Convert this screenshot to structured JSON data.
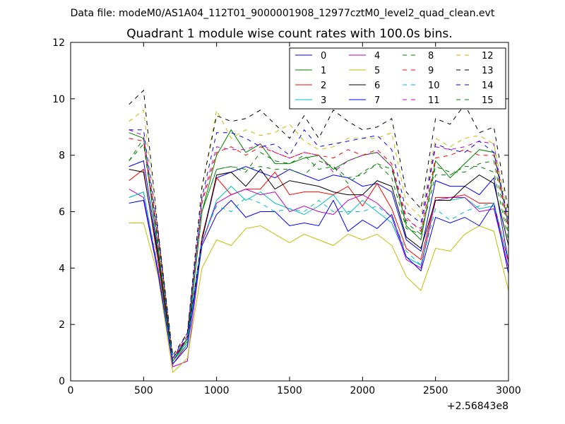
{
  "chart_data": {
    "type": "line",
    "suptitle": "Data file: modeM0/AS1A04_112T01_9000001908_12977cztM0_level2_quad_clean.evt",
    "title": "Quadrant 1 module wise count rates with 100.0s bins.",
    "xlabel": "",
    "ylabel": "",
    "offset_label": "+2.56843e8",
    "xlim": [
      0,
      3000
    ],
    "ylim": [
      0,
      12
    ],
    "xticks": [
      0,
      500,
      1000,
      1500,
      2000,
      2500,
      3000
    ],
    "xtick_labels": [
      "0",
      "500",
      "1000",
      "1500",
      "2000",
      "2500",
      "3000"
    ],
    "yticks": [
      0,
      2,
      4,
      6,
      8,
      10,
      12
    ],
    "ytick_labels": [
      "0",
      "2",
      "4",
      "6",
      "8",
      "10",
      "12"
    ],
    "grid": false,
    "legend_position": "top-right",
    "x": [
      400,
      500,
      600,
      700,
      800,
      900,
      1000,
      1100,
      1200,
      1300,
      1400,
      1500,
      1600,
      1700,
      1800,
      1900,
      2000,
      2100,
      2200,
      2300,
      2400,
      2500,
      2600,
      2700,
      2800,
      2900,
      3000
    ],
    "series": [
      {
        "name": "0",
        "color": "#0000ff",
        "style": "solid",
        "values": [
          7.6,
          7.8,
          4.5,
          0.8,
          1.5,
          5.0,
          7.2,
          7.4,
          7.6,
          7.4,
          7.2,
          7.5,
          7.3,
          7.1,
          7.3,
          7.2,
          6.9,
          7.0,
          6.7,
          5.0,
          4.6,
          7.1,
          6.9,
          6.9,
          6.6,
          7.2,
          4.2
        ]
      },
      {
        "name": "1",
        "color": "#008000",
        "style": "solid",
        "values": [
          8.8,
          8.6,
          4.6,
          0.7,
          1.4,
          6.0,
          8.0,
          8.9,
          8.1,
          8.4,
          7.7,
          7.7,
          7.9,
          8.0,
          7.5,
          7.8,
          8.0,
          8.1,
          7.6,
          5.5,
          5.0,
          7.8,
          7.2,
          7.7,
          8.2,
          8.1,
          5.5
        ]
      },
      {
        "name": "2",
        "color": "#ff0000",
        "style": "solid",
        "values": [
          7.1,
          7.5,
          4.2,
          0.6,
          1.3,
          5.1,
          7.2,
          6.6,
          6.8,
          6.8,
          7.4,
          6.6,
          6.7,
          6.7,
          6.6,
          6.9,
          6.2,
          7.0,
          6.1,
          4.7,
          4.3,
          6.5,
          6.5,
          6.6,
          6.3,
          6.3,
          4.2
        ]
      },
      {
        "name": "3",
        "color": "#00bfbf",
        "style": "solid",
        "values": [
          6.5,
          6.7,
          3.9,
          0.7,
          1.3,
          4.9,
          6.4,
          6.9,
          6.4,
          6.7,
          6.3,
          6.1,
          5.9,
          6.2,
          6.6,
          5.9,
          6.4,
          6.0,
          5.6,
          4.4,
          4.1,
          6.4,
          6.4,
          6.5,
          6.1,
          6.2,
          4.0
        ]
      },
      {
        "name": "4",
        "color": "#bf00bf",
        "style": "solid",
        "values": [
          6.8,
          6.5,
          3.9,
          0.5,
          0.7,
          4.9,
          6.3,
          6.6,
          6.8,
          6.6,
          6.7,
          6.0,
          6.2,
          6.0,
          5.9,
          6.4,
          6.6,
          6.3,
          5.8,
          4.3,
          4.0,
          6.4,
          6.5,
          6.5,
          6.0,
          6.1,
          4.0
        ]
      },
      {
        "name": "5",
        "color": "#bfbf00",
        "style": "solid",
        "values": [
          5.6,
          5.6,
          3.7,
          0.3,
          0.8,
          4.0,
          5.0,
          4.8,
          5.4,
          5.5,
          5.2,
          4.9,
          5.2,
          5.0,
          4.8,
          5.2,
          5.0,
          5.2,
          4.8,
          3.7,
          3.2,
          4.7,
          4.6,
          5.2,
          5.5,
          5.3,
          3.2
        ]
      },
      {
        "name": "6",
        "color": "#000000",
        "style": "solid",
        "values": [
          7.5,
          7.4,
          4.4,
          0.7,
          1.5,
          5.0,
          7.3,
          7.4,
          6.9,
          7.5,
          6.8,
          7.1,
          7.0,
          6.9,
          6.7,
          6.6,
          6.6,
          7.1,
          6.9,
          5.1,
          4.7,
          6.4,
          6.4,
          6.9,
          7.3,
          7.0,
          4.8
        ]
      },
      {
        "name": "7",
        "color": "#0000ff",
        "style": "solid",
        "values": [
          6.3,
          6.4,
          3.8,
          0.6,
          1.2,
          4.8,
          5.9,
          6.4,
          5.8,
          6.0,
          6.0,
          5.5,
          5.6,
          5.5,
          6.4,
          5.3,
          5.7,
          5.4,
          5.9,
          4.4,
          3.9,
          5.8,
          5.6,
          5.8,
          5.5,
          6.3,
          3.8
        ]
      },
      {
        "name": "8",
        "color": "#008000",
        "style": "dashed",
        "values": [
          7.8,
          8.6,
          4.9,
          0.8,
          1.6,
          6.0,
          7.5,
          7.6,
          7.4,
          8.1,
          7.8,
          7.7,
          8.0,
          7.5,
          7.6,
          7.2,
          7.3,
          7.7,
          7.5,
          5.6,
          5.2,
          7.6,
          7.4,
          7.4,
          7.7,
          7.8,
          5.2
        ]
      },
      {
        "name": "9",
        "color": "#ff0000",
        "style": "dashed",
        "values": [
          8.6,
          8.5,
          5.0,
          0.7,
          1.6,
          6.3,
          8.1,
          8.3,
          8.0,
          8.3,
          8.1,
          7.9,
          8.1,
          8.0,
          7.9,
          8.2,
          8.0,
          8.2,
          7.7,
          5.8,
          5.3,
          7.9,
          8.0,
          8.2,
          8.0,
          8.0,
          5.4
        ]
      },
      {
        "name": "10",
        "color": "#00bfbf",
        "style": "dashed",
        "values": [
          6.5,
          6.7,
          4.0,
          0.7,
          1.4,
          5.0,
          6.2,
          6.0,
          6.5,
          6.3,
          6.0,
          6.1,
          6.0,
          6.4,
          6.0,
          6.0,
          6.0,
          6.2,
          5.8,
          4.6,
          4.1,
          6.1,
          5.7,
          6.0,
          6.2,
          6.3,
          4.2
        ]
      },
      {
        "name": "11",
        "color": "#bf00bf",
        "style": "dashed",
        "values": [
          8.9,
          8.7,
          5.1,
          0.8,
          1.6,
          6.4,
          8.3,
          8.2,
          8.2,
          8.4,
          8.1,
          7.9,
          8.1,
          8.0,
          7.4,
          7.8,
          8.0,
          8.1,
          7.6,
          5.7,
          5.4,
          8.3,
          8.2,
          8.3,
          8.5,
          8.4,
          5.4
        ]
      },
      {
        "name": "12",
        "color": "#bfbf00",
        "style": "dashed",
        "values": [
          9.2,
          9.6,
          5.3,
          0.8,
          1.7,
          6.8,
          9.6,
          8.6,
          8.9,
          8.7,
          8.8,
          9.1,
          8.5,
          8.2,
          8.3,
          8.6,
          8.6,
          8.6,
          8.8,
          6.3,
          5.8,
          8.6,
          8.3,
          8.6,
          8.7,
          8.4,
          5.8
        ]
      },
      {
        "name": "13",
        "color": "#000000",
        "style": "dashed",
        "values": [
          9.8,
          10.3,
          5.3,
          0.9,
          1.7,
          6.9,
          9.4,
          9.2,
          9.3,
          9.6,
          9.1,
          8.6,
          9.4,
          8.6,
          9.6,
          9.2,
          8.9,
          9.0,
          9.3,
          6.7,
          6.1,
          9.3,
          9.1,
          9.8,
          8.8,
          9.0,
          6.0
        ]
      },
      {
        "name": "14",
        "color": "#0000ff",
        "style": "dashed",
        "values": [
          8.9,
          8.9,
          5.2,
          0.8,
          1.7,
          6.5,
          8.8,
          8.8,
          8.6,
          8.3,
          8.4,
          8.0,
          8.9,
          8.3,
          8.4,
          8.5,
          8.6,
          8.7,
          8.2,
          6.0,
          5.6,
          8.4,
          8.2,
          8.1,
          8.5,
          8.1,
          5.7
        ]
      },
      {
        "name": "15",
        "color": "#008000",
        "style": "dashed",
        "values": [
          7.8,
          8.4,
          4.8,
          0.7,
          1.5,
          6.0,
          7.5,
          7.6,
          7.5,
          7.6,
          7.5,
          7.5,
          7.3,
          7.8,
          7.6,
          7.0,
          7.4,
          7.7,
          7.2,
          5.4,
          5.2,
          7.3,
          7.3,
          7.6,
          7.6,
          7.4,
          5.0
        ]
      }
    ]
  }
}
